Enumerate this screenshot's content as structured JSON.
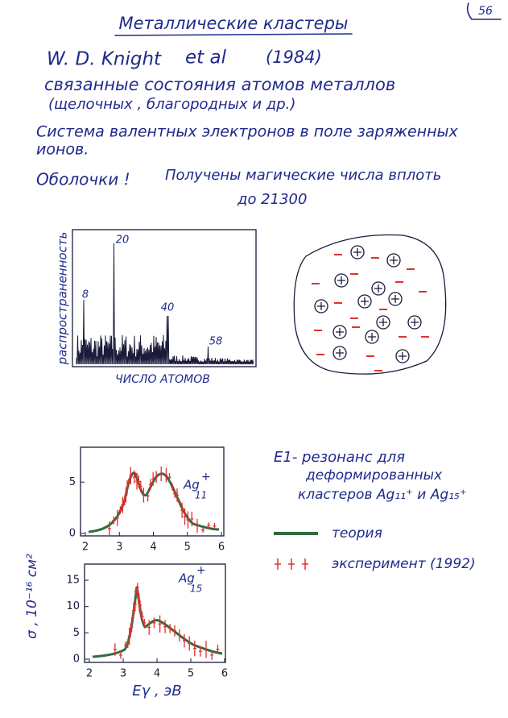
{
  "header": {
    "page_number": "56",
    "title": "Металлические кластеры"
  },
  "body": {
    "lines": [
      "W. D. Knight",
      "et al",
      "(1984)",
      "связанные состояния атомов металлов",
      "(щелочных , благородных и др.)",
      "Система валентных электронов в поле заряженных",
      "ионов.",
      "Оболочки !",
      "Получены магические числа вплоть",
      "до 21300"
    ]
  },
  "figure_abundance": {
    "y_label": "распространенность",
    "x_label": "ЧИСЛО АТОМОВ",
    "peak_labels": [
      "8",
      "20",
      "40",
      "58"
    ]
  },
  "figure_resonance": {
    "y_label": "σ , 10⁻¹⁶ см²",
    "x_label": "Eγ , эВ",
    "xlim": [
      2,
      6
    ],
    "xticks": [
      2,
      3,
      4,
      5,
      6
    ],
    "panels": [
      {
        "ion": "Ag",
        "charge": "+",
        "size": "11",
        "ylim": [
          0,
          8
        ],
        "yticks": [
          0,
          5
        ]
      },
      {
        "ion": "Ag",
        "charge": "+",
        "size": "15",
        "ylim": [
          0,
          17
        ],
        "yticks": [
          0,
          5,
          10,
          15
        ]
      }
    ],
    "caption": [
      "E1- резонанс для",
      "деформированных",
      "кластеров Ag₁₁⁺ и Ag₁₅⁺"
    ],
    "legend": [
      "теория",
      "эксперимент (1992)"
    ]
  }
}
